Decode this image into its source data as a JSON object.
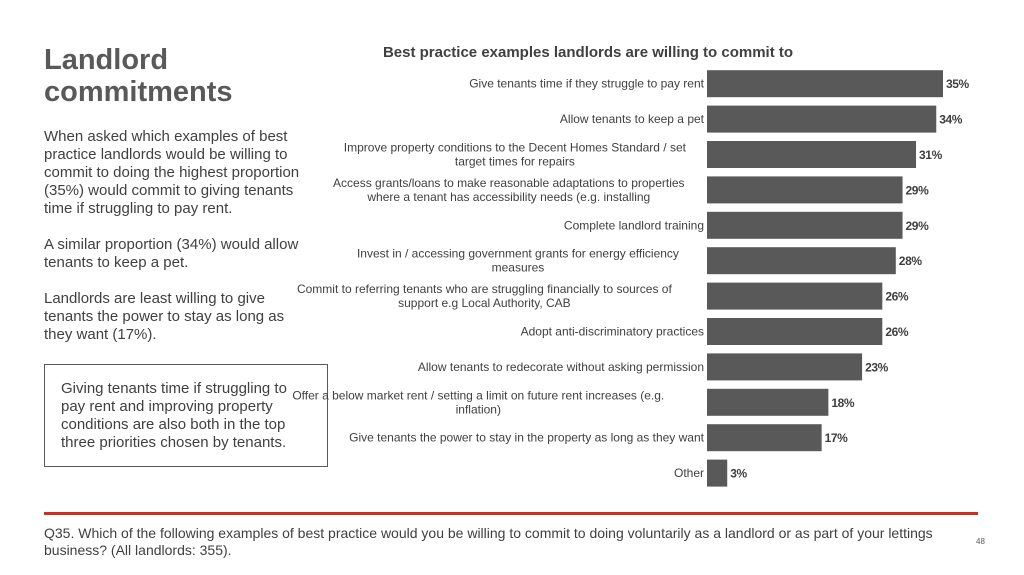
{
  "slide": {
    "title": "Landlord commitments",
    "paragraphs": [
      "When asked which examples of best practice landlords would be willing to commit to doing the highest proportion (35%) would commit to giving tenants time if struggling to pay rent.",
      "A similar proportion (34%) would allow tenants to keep a pet.",
      "Landlords are least willing to give tenants the power to stay as long as they want (17%)."
    ],
    "callout": "Giving tenants time if struggling to pay rent and improving property conditions are also both in the top three priorities chosen by tenants.",
    "footnote": "Q35. Which of the following examples of best practice would you be willing to commit to doing voluntarily as a landlord or as part of your lettings business? (All landlords: 355).",
    "page_number": "48"
  },
  "chart_data": {
    "type": "bar",
    "orientation": "horizontal",
    "title": "Best practice examples landlords are willing to commit to",
    "categories": [
      [
        "Give tenants time if they struggle to pay rent"
      ],
      [
        "Allow tenants to keep a pet"
      ],
      [
        "Improve property conditions to the Decent Homes Standard / set",
        "target times for repairs"
      ],
      [
        "Access grants/loans to make reasonable adaptations to properties",
        "where a tenant has accessibility needs (e.g. installing"
      ],
      [
        "Complete landlord training"
      ],
      [
        "Invest in / accessing government grants for energy efficiency",
        "measures"
      ],
      [
        "Commit to referring tenants who are struggling financially to sources of",
        "support e.g Local Authority, CAB"
      ],
      [
        "Adopt anti-discriminatory practices"
      ],
      [
        "Allow tenants to redecorate without asking permission"
      ],
      [
        "Offer a below market rent / setting a limit on future rent increases (e.g.",
        "inflation)"
      ],
      [
        "Give tenants the power to stay in the property as long as they want"
      ],
      [
        "Other"
      ]
    ],
    "values": [
      35,
      34,
      31,
      29,
      29,
      28,
      26,
      26,
      23,
      18,
      17,
      3
    ],
    "value_labels": [
      "35%",
      "34%",
      "31%",
      "29%",
      "29%",
      "28%",
      "26%",
      "26%",
      "23%",
      "18%",
      "17%",
      "3%"
    ],
    "unit": "%",
    "xlim": [
      0,
      35
    ],
    "bar_color": "#595959",
    "grid": false,
    "legend": "none"
  }
}
